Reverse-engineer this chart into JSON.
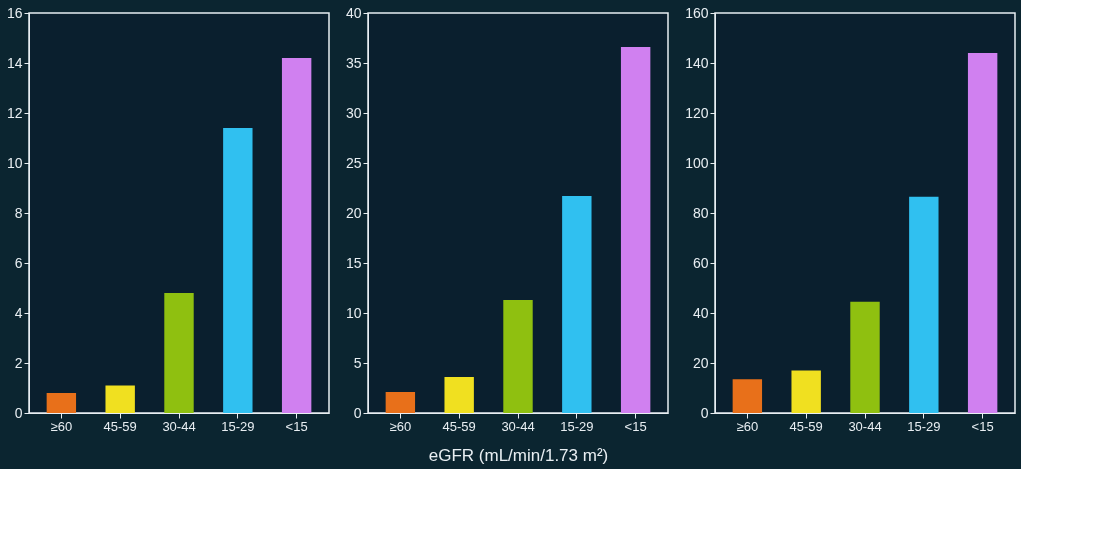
{
  "chart_data": [
    {
      "type": "bar",
      "categories": [
        "≥60",
        "45-59",
        "30-44",
        "15-29",
        "<15"
      ],
      "values": [
        0.8,
        1.1,
        4.8,
        11.4,
        14.2
      ],
      "colors": [
        "#e8701a",
        "#f0e020",
        "#8fc010",
        "#30c0f0",
        "#d080f0"
      ],
      "ylim": [
        0,
        16
      ],
      "yticks": [
        0,
        2,
        4,
        6,
        8,
        10,
        12,
        14,
        16
      ],
      "grid": false,
      "legend": false
    },
    {
      "type": "bar",
      "categories": [
        "≥60",
        "45-59",
        "30-44",
        "15-29",
        "<15"
      ],
      "values": [
        2.1,
        3.6,
        11.3,
        21.7,
        36.6
      ],
      "colors": [
        "#e8701a",
        "#f0e020",
        "#8fc010",
        "#30c0f0",
        "#d080f0"
      ],
      "ylim": [
        0,
        40
      ],
      "yticks": [
        0,
        5,
        10,
        15,
        20,
        25,
        30,
        35,
        40
      ],
      "xlabel": "eGFR (mL/min/1.73 m²)",
      "grid": false,
      "legend": false
    },
    {
      "type": "bar",
      "categories": [
        "≥60",
        "45-59",
        "30-44",
        "15-29",
        "<15"
      ],
      "values": [
        13.5,
        17,
        44.5,
        86.5,
        144
      ],
      "colors": [
        "#e8701a",
        "#f0e020",
        "#8fc010",
        "#30c0f0",
        "#d080f0"
      ],
      "ylim": [
        0,
        160
      ],
      "yticks": [
        0,
        20,
        40,
        60,
        80,
        100,
        120,
        140,
        160
      ],
      "grid": false,
      "legend": false
    }
  ]
}
